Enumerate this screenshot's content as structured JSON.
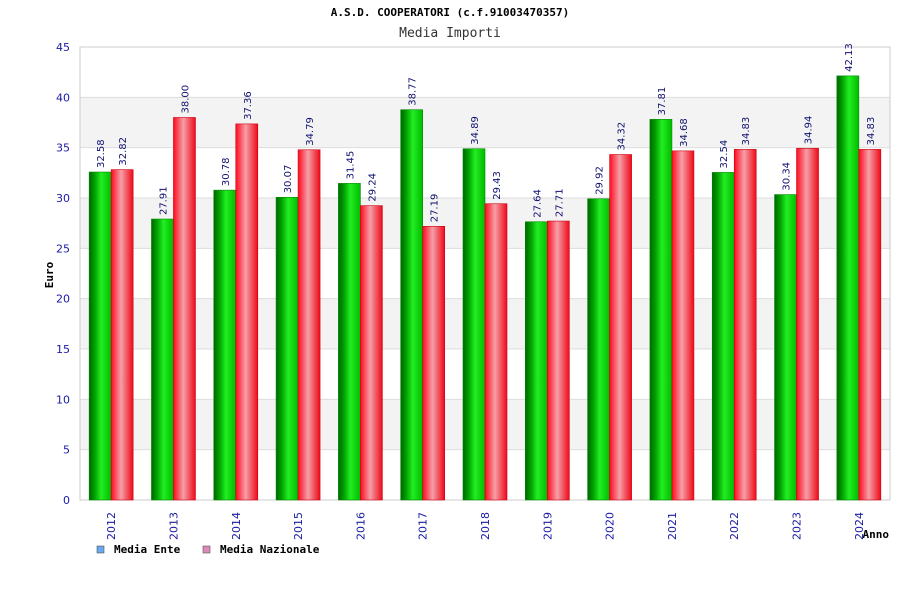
{
  "chart_data": {
    "type": "bar",
    "title": "A.S.D. COOPERATORI (c.f.91003470357)",
    "subtitle": "Media Importi",
    "xlabel": "Anno",
    "ylabel": "Euro",
    "ylim": [
      0,
      45
    ],
    "yticks": [
      0,
      5,
      10,
      15,
      20,
      25,
      30,
      35,
      40,
      45
    ],
    "categories": [
      "2012",
      "2013",
      "2014",
      "2015",
      "2016",
      "2017",
      "2018",
      "2019",
      "2020",
      "2021",
      "2022",
      "2023",
      "2024"
    ],
    "series": [
      {
        "name": "Media Ente",
        "color": "#00cc00",
        "legend_color": "#66aaee",
        "values": [
          32.58,
          27.91,
          30.78,
          30.07,
          31.45,
          38.77,
          34.89,
          27.64,
          29.92,
          37.81,
          32.54,
          30.34,
          42.13
        ],
        "labels": [
          "32.58",
          "27.91",
          "30.78",
          "30.07",
          "31.45",
          "38.77",
          "34.89",
          "27.64",
          "29.92",
          "37.81",
          "32.54",
          "30.34",
          "42.13"
        ]
      },
      {
        "name": "Media Nazionale",
        "color": "#ee1122",
        "legend_color": "#dd88bb",
        "values": [
          32.82,
          38.0,
          37.36,
          34.79,
          29.24,
          27.19,
          29.43,
          27.71,
          34.32,
          34.68,
          34.83,
          34.94,
          34.83
        ],
        "labels": [
          "32.82",
          "38.00",
          "37.36",
          "34.79",
          "29.24",
          "27.19",
          "29.43",
          "27.71",
          "34.32",
          "34.68",
          "34.83",
          "34.94",
          "34.83"
        ]
      }
    ],
    "grid": true,
    "legend_position": "bottom-left"
  }
}
